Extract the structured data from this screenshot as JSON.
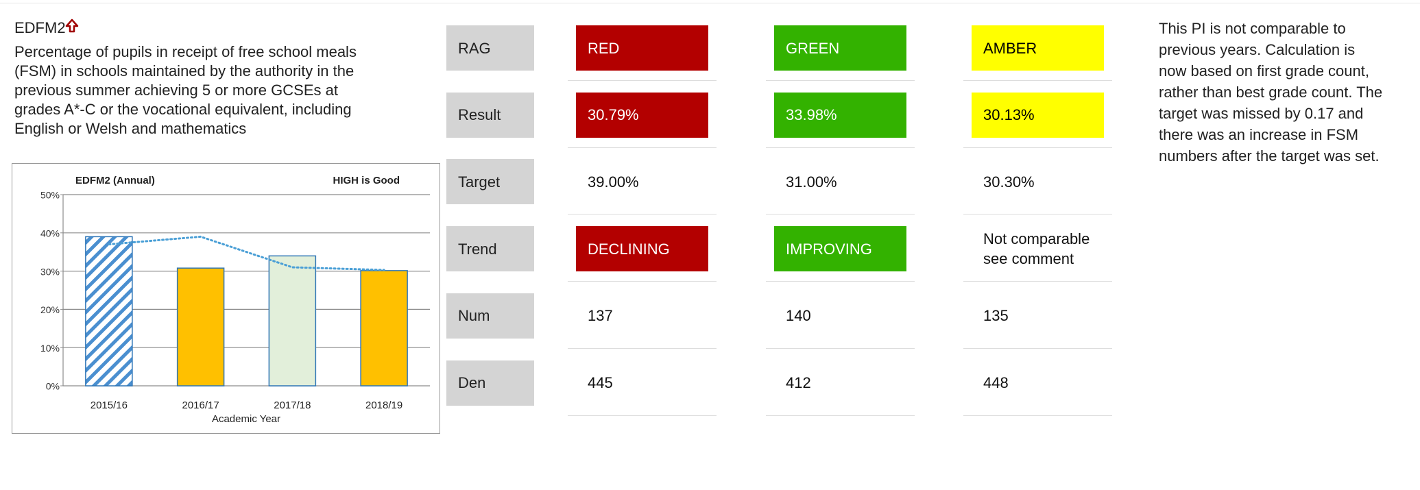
{
  "header": {
    "code": "EDFM2",
    "description_lines": [
      "Percentage of pupils in receipt of free school meals",
      "(FSM) in schools maintained by the authority in the",
      "previous summer achieving 5 or more GCSEs at",
      "grades A*-C or the vocational equivalent, including",
      "English or Welsh and mathematics"
    ]
  },
  "chart": {
    "type": "bar",
    "title": "EDFM2 (Annual)",
    "note": "HIGH is Good",
    "x_label": "Academic Year",
    "categories": [
      "2015/16",
      "2016/17",
      "2017/18",
      "2018/19"
    ],
    "series": [
      {
        "values": [
          39,
          30.79,
          33.98,
          30.13
        ],
        "colors": [
          "hatched",
          "#ffc000",
          "#e2efda",
          "#ffc000"
        ],
        "edge_color": "#2e75b6"
      },
      {
        "values": [
          37,
          39,
          31,
          30.3
        ],
        "color": "#4a9fd6",
        "style": "dotted"
      }
    ],
    "ylim": [
      0,
      50
    ],
    "yticks": [
      {
        "value": 0,
        "label": "0%"
      },
      {
        "value": 10,
        "label": "10%"
      },
      {
        "value": 20,
        "label": "20%"
      },
      {
        "value": 30,
        "label": "30%"
      },
      {
        "value": 40,
        "label": "40%"
      },
      {
        "value": 50,
        "label": "50%"
      }
    ],
    "grid": true
  },
  "table": {
    "rows": [
      {
        "label": "RAG",
        "cells": [
          {
            "text": "RED",
            "color": "#b30000",
            "text_color": "#ffffff"
          },
          {
            "text": "GREEN",
            "color": "#33b200",
            "text_color": "#ffffff"
          },
          {
            "text": "AMBER",
            "color": "#ffff00",
            "text_color": "#000000"
          }
        ]
      },
      {
        "label": "Result",
        "cells": [
          {
            "text": "30.79%",
            "color": "#b30000",
            "text_color": "#ffffff"
          },
          {
            "text": "33.98%",
            "color": "#33b200",
            "text_color": "#ffffff"
          },
          {
            "text": "30.13%",
            "color": "#ffff00",
            "text_color": "#000000"
          }
        ]
      },
      {
        "label": "Target",
        "cells": [
          {
            "text": "39.00%"
          },
          {
            "text": "31.00%"
          },
          {
            "text": "30.30%"
          }
        ]
      },
      {
        "label": "Trend",
        "cells": [
          {
            "text": "DECLINING",
            "color": "#b30000",
            "text_color": "#ffffff"
          },
          {
            "text": "IMPROVING",
            "color": "#33b200",
            "text_color": "#ffffff"
          },
          {
            "text": "Not comparable see comment"
          }
        ]
      },
      {
        "label": "Num",
        "cells": [
          {
            "text": "137"
          },
          {
            "text": "140"
          },
          {
            "text": "135"
          }
        ]
      },
      {
        "label": "Den",
        "cells": [
          {
            "text": "445"
          },
          {
            "text": "412"
          },
          {
            "text": "448"
          }
        ]
      }
    ]
  },
  "comment_lines": [
    "This PI is not comparable to",
    "previous years. Calculation is",
    "now based on first grade count,",
    "rather than best grade count. The",
    "target was missed by 0.17 and",
    "there was an increase in FSM",
    "numbers after the target was set."
  ]
}
